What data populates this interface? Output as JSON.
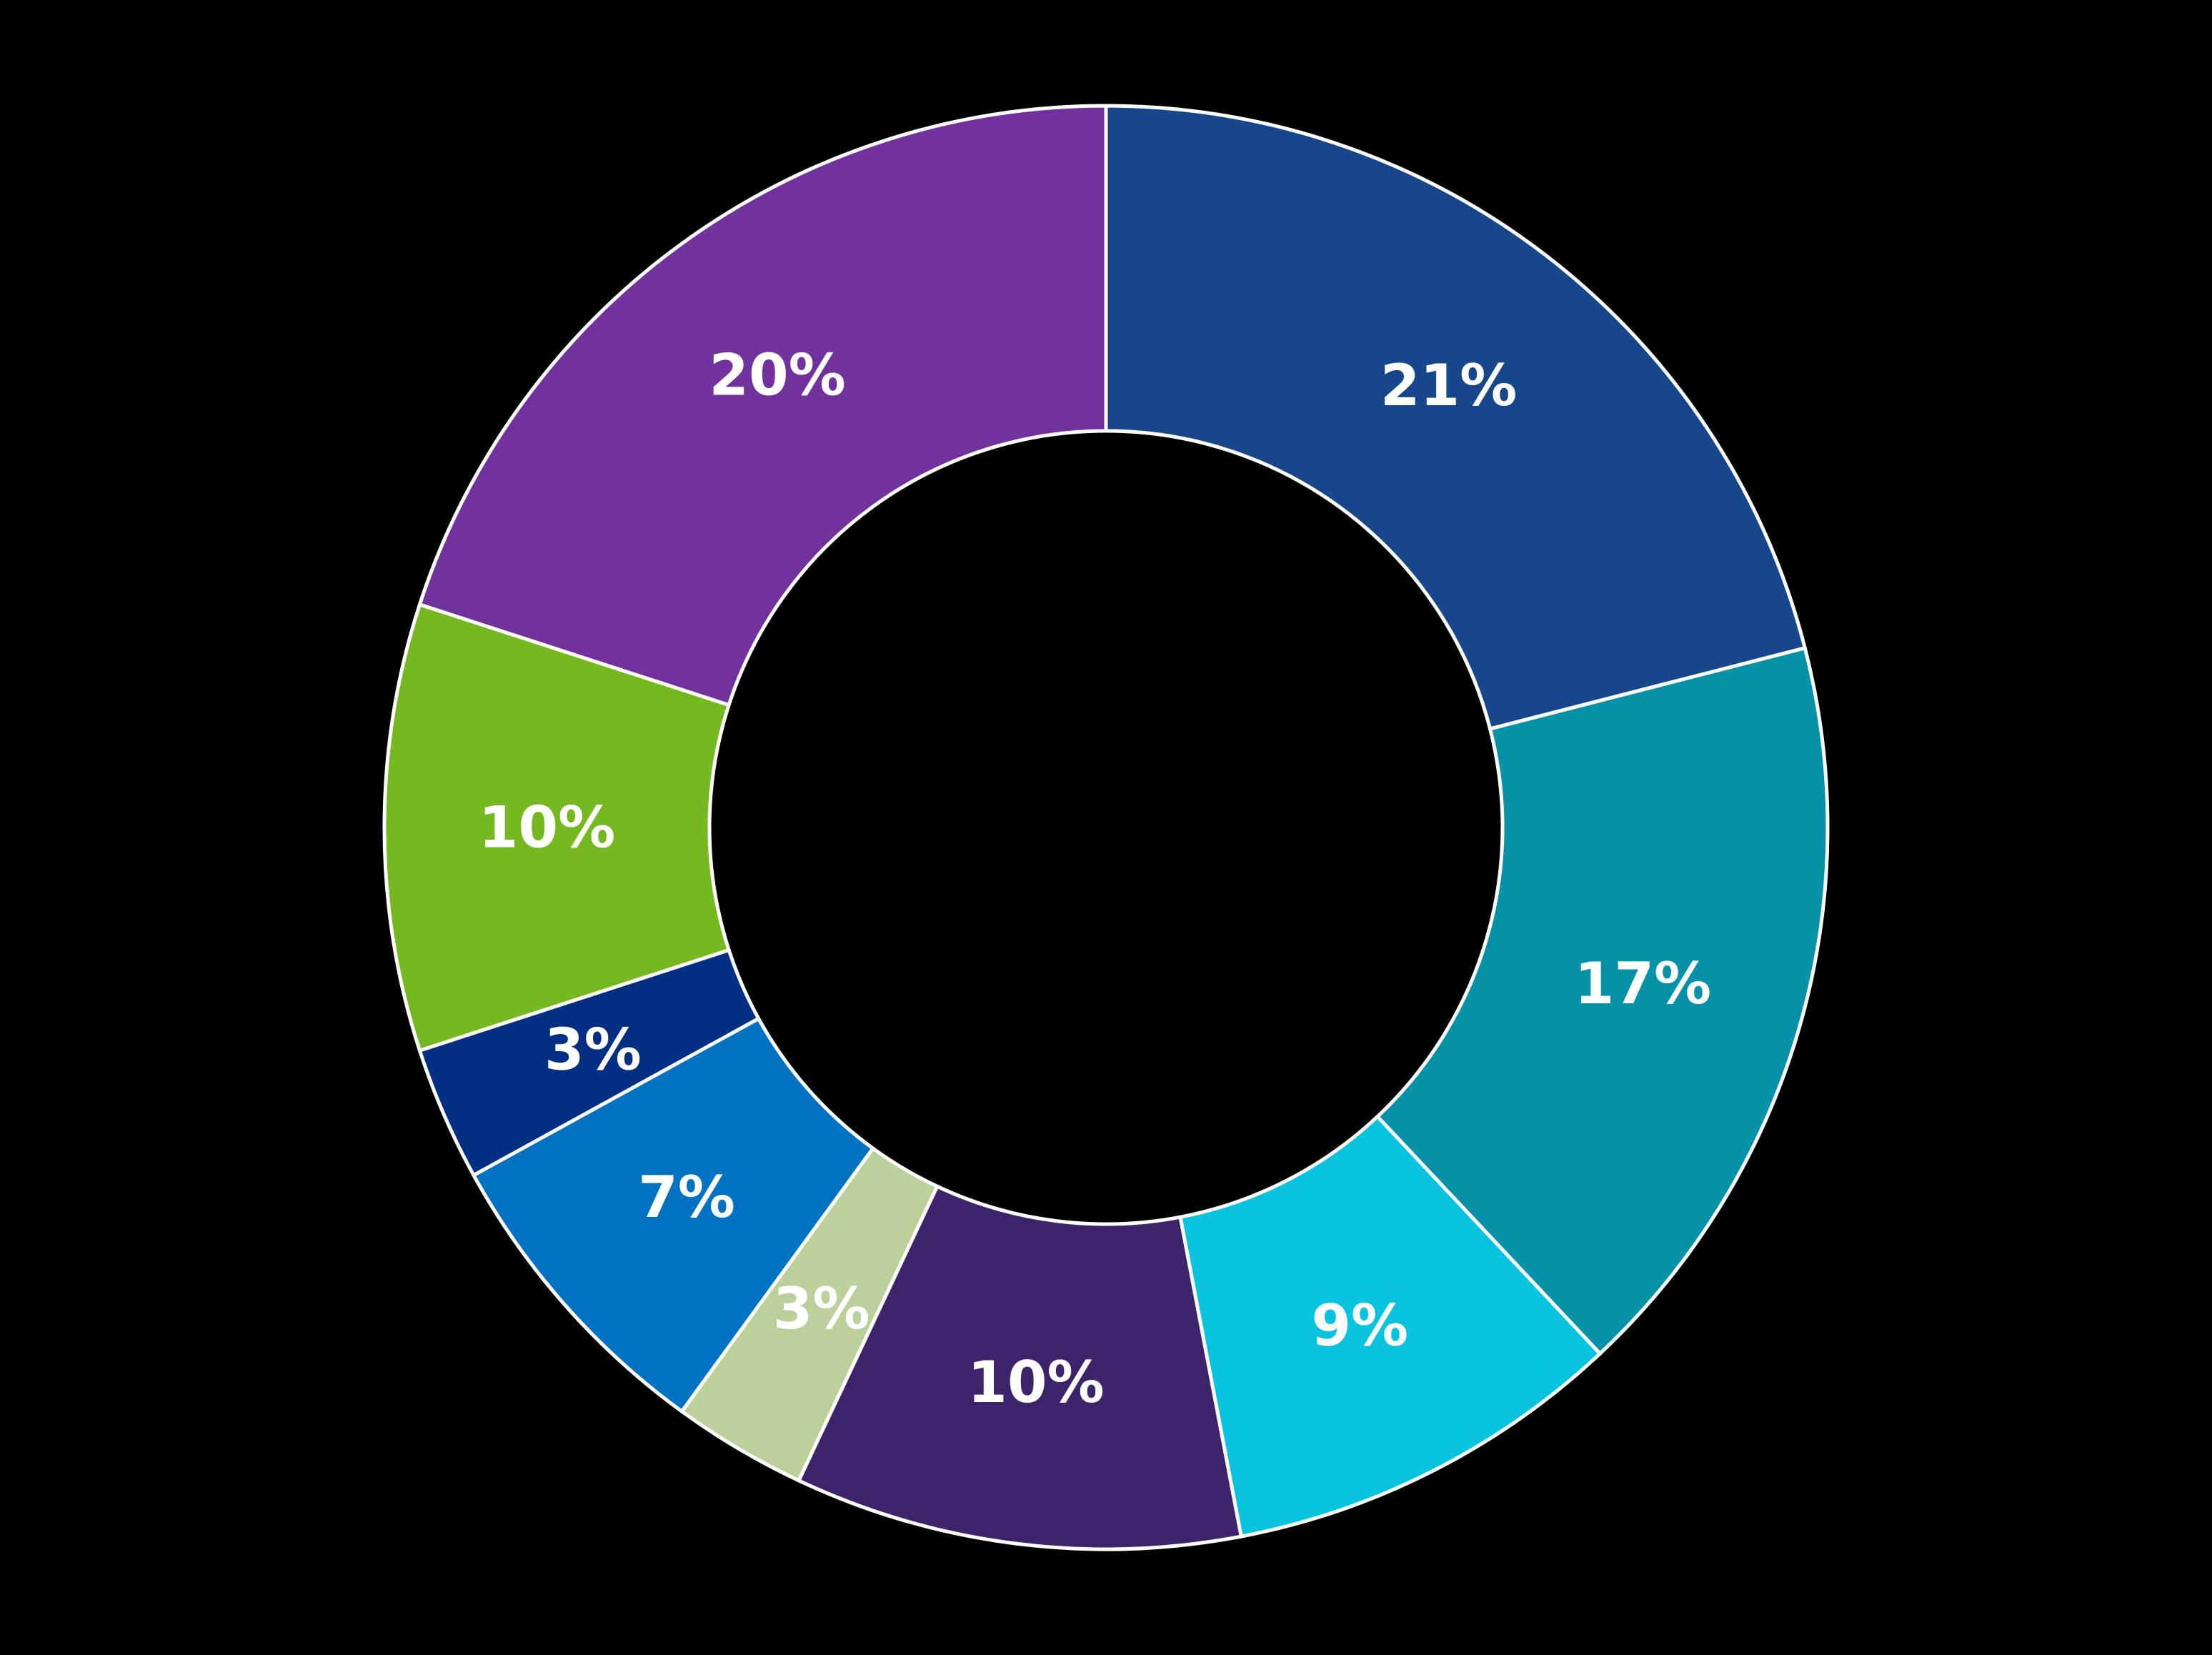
{
  "chart_data": {
    "type": "pie",
    "variant": "donut",
    "title": "",
    "start_angle_deg": 0,
    "direction": "clockwise",
    "center": [
      1548,
      1158
    ],
    "outer_radius": 1010,
    "inner_radius": 555,
    "background": "#000000",
    "stroke_color": "#ffffff",
    "legend": null,
    "slices": [
      {
        "label": "21%",
        "value": 21,
        "color": "#17468A"
      },
      {
        "label": "17%",
        "value": 17,
        "color": "#0592A8"
      },
      {
        "label": "9%",
        "value": 9,
        "color": "#08C3DF"
      },
      {
        "label": "10%",
        "value": 10,
        "color": "#3D246A"
      },
      {
        "label": "3%",
        "value": 3,
        "color": "#BBD09B"
      },
      {
        "label": "7%",
        "value": 7,
        "color": "#0072C1"
      },
      {
        "label": "3%",
        "value": 3,
        "color": "#032F82"
      },
      {
        "label": "10%",
        "value": 10,
        "color": "#75B821"
      },
      {
        "label": "20%",
        "value": 20,
        "color": "#71329E"
      }
    ]
  }
}
